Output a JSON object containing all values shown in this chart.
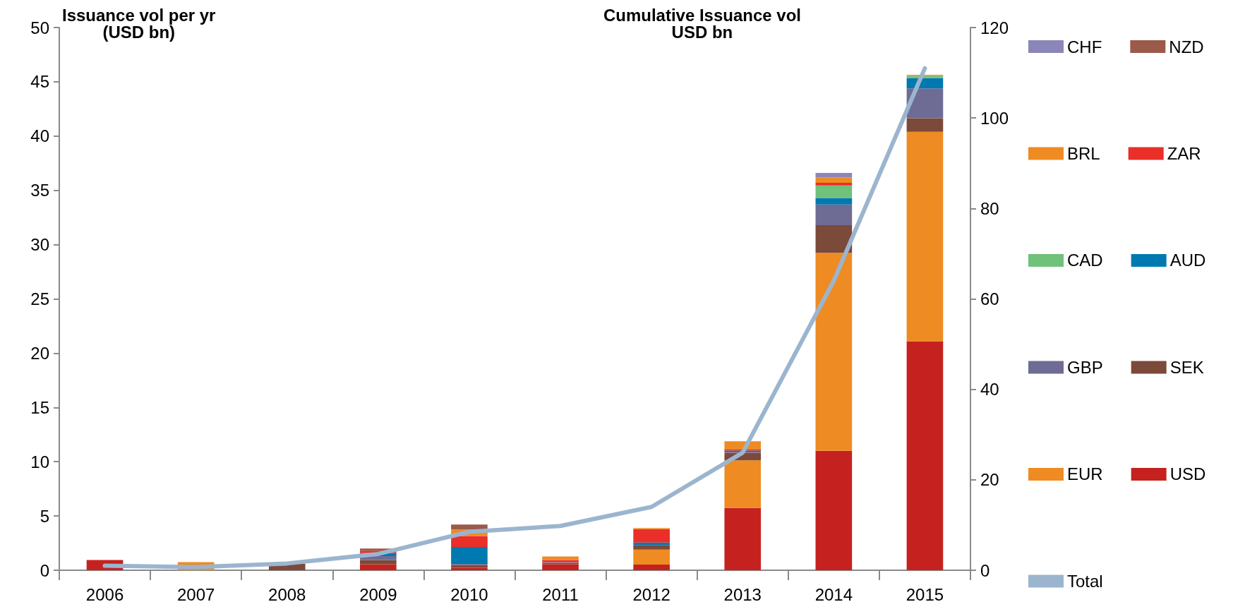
{
  "chart_data": {
    "type": "bar",
    "stacked": true,
    "ylabel": "Issuance vol per yr\n(USD bn)",
    "y2label": "Cumulative Issuance vol\nUSD bn",
    "categories": [
      "2006",
      "2007",
      "2008",
      "2009",
      "2010",
      "2011",
      "2012",
      "2013",
      "2014",
      "2015"
    ],
    "ylim": [
      0,
      50
    ],
    "yticks": [
      0,
      5,
      10,
      15,
      20,
      25,
      30,
      35,
      40,
      45,
      50
    ],
    "y2lim": [
      0,
      120
    ],
    "y2ticks": [
      0,
      20,
      40,
      60,
      80,
      100,
      120
    ],
    "grid": false,
    "legend": "right",
    "marker": "none",
    "series": [
      {
        "name": "USD",
        "color": "#c5221f",
        "values": [
          0.95,
          null,
          null,
          0.55,
          0.23,
          0.56,
          0.52,
          5.73,
          11.0,
          21.1
        ]
      },
      {
        "name": "EUR",
        "color": "#ee8b23",
        "values": [
          null,
          0.75,
          null,
          null,
          null,
          null,
          1.38,
          4.39,
          18.25,
          19.3
        ]
      },
      {
        "name": "SEK",
        "color": "#7b4a3a",
        "values": [
          null,
          null,
          0.6,
          0.4,
          0.26,
          0.1,
          0.43,
          0.71,
          2.55,
          1.25
        ]
      },
      {
        "name": "GBP",
        "color": "#6e6c95",
        "values": [
          null,
          null,
          null,
          0.35,
          0.1,
          0.07,
          null,
          0.1,
          1.9,
          2.75
        ]
      },
      {
        "name": "AUD",
        "color": "#0079b0",
        "values": [
          null,
          null,
          null,
          0.3,
          1.56,
          null,
          0.22,
          0.09,
          0.6,
          0.95
        ]
      },
      {
        "name": "CAD",
        "color": "#70c17a",
        "values": [
          null,
          null,
          null,
          null,
          null,
          null,
          null,
          null,
          1.15,
          0.2
        ]
      },
      {
        "name": "ZAR",
        "color": "#ea2e28",
        "values": [
          null,
          null,
          null,
          0.2,
          1.0,
          0.22,
          1.23,
          0.1,
          0.25,
          null
        ]
      },
      {
        "name": "BRL",
        "color": "#ee8b23",
        "values": [
          null,
          null,
          null,
          null,
          0.6,
          0.32,
          0.1,
          0.76,
          0.5,
          0.1
        ]
      },
      {
        "name": "NZD",
        "color": "#9b5a4a",
        "values": [
          null,
          null,
          null,
          0.2,
          0.46,
          null,
          null,
          null,
          null,
          null
        ]
      },
      {
        "name": "CHF",
        "color": "#8b86b8",
        "values": [
          null,
          null,
          null,
          null,
          null,
          null,
          null,
          null,
          0.4,
          null
        ]
      },
      {
        "name": "Total",
        "type": "line",
        "axis": "y2",
        "color": "#9bb5cf",
        "values": [
          1,
          0.7,
          1.5,
          3.6,
          8.5,
          9.8,
          14,
          26,
          64,
          111
        ]
      }
    ]
  }
}
